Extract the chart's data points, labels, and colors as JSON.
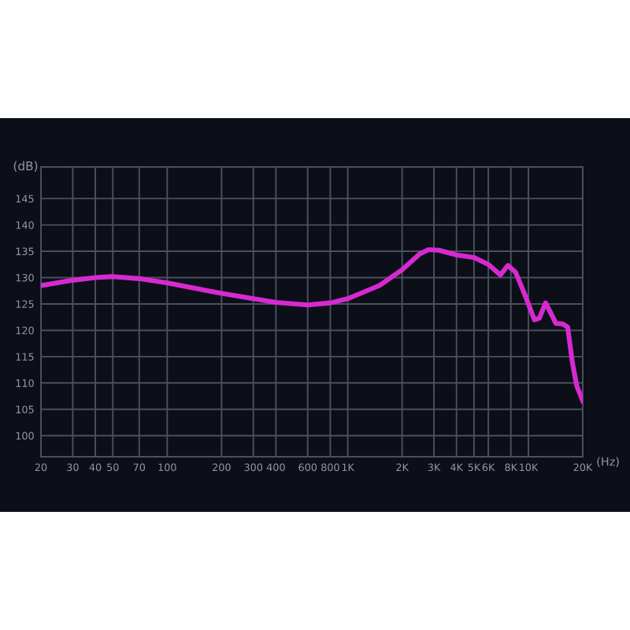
{
  "chart_data": {
    "type": "line",
    "xlabel": "(Hz)",
    "ylabel": "(dB)",
    "log": "x",
    "grid": true,
    "marker": "none",
    "line_style": "solid",
    "xlim": [
      20,
      20000
    ],
    "ylim": [
      96,
      151
    ],
    "xticks": [
      20,
      30,
      40,
      50,
      70,
      100,
      200,
      300,
      400,
      600,
      800,
      {
        "value": 1000,
        "label": "1K"
      },
      {
        "value": 2000,
        "label": "2K"
      },
      {
        "value": 3000,
        "label": "3K"
      },
      {
        "value": 4000,
        "label": "4K"
      },
      {
        "value": 5000,
        "label": "5K"
      },
      {
        "value": 6000,
        "label": "6K"
      },
      {
        "value": 8000,
        "label": "8K"
      },
      {
        "value": 10000,
        "label": "10K"
      },
      {
        "value": 20000,
        "label": "20K"
      }
    ],
    "yticks": [
      100,
      105,
      110,
      115,
      120,
      125,
      130,
      135,
      140,
      145
    ],
    "series": [
      {
        "color": "#d62ad0",
        "x": [
          20,
          30,
          40,
          50,
          70,
          100,
          200,
          300,
          400,
          600,
          800,
          1000,
          1500,
          2000,
          2500,
          2800,
          3200,
          4000,
          5000,
          6000,
          7000,
          7700,
          8500,
          9500,
          10800,
          11500,
          12450,
          13200,
          14200,
          15500,
          16500,
          17500,
          18500,
          20000
        ],
        "values": [
          128.5,
          129.5,
          130,
          130.2,
          129.8,
          129,
          127,
          126,
          125.3,
          124.8,
          125.2,
          126,
          128.5,
          131.5,
          134.5,
          135.3,
          135.2,
          134.3,
          133.8,
          132.5,
          130.5,
          132.3,
          131,
          127,
          122,
          122.3,
          125.2,
          123.5,
          121.3,
          121.2,
          120.6,
          114,
          109.5,
          106.6
        ]
      }
    ]
  }
}
